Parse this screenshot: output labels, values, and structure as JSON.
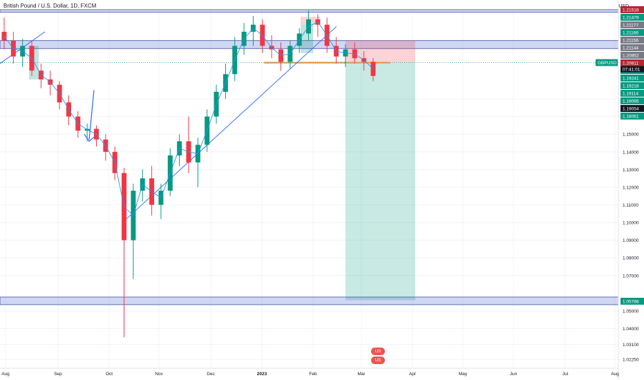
{
  "chart_title": "British Pound / U.S. Dollar, 1D, FXCM",
  "currency": "USD",
  "symbol": "GBPUSD",
  "countdown": "07:41:01",
  "flags": [
    "US",
    "US"
  ],
  "chart_data": {
    "type": "candlestick",
    "ylim": [
      1.0175,
      1.2205
    ],
    "price_ticks": [
      "1.17000",
      "1.16000",
      "1.15000",
      "1.14000",
      "1.13000",
      "1.12000",
      "1.11000",
      "1.10000",
      "1.09000",
      "1.08000",
      "1.07000",
      "1.05000",
      "1.04000",
      "1.03100",
      "1.02250"
    ],
    "price_tick_values": [
      1.17,
      1.16,
      1.15,
      1.14,
      1.13,
      1.12,
      1.11,
      1.1,
      1.09,
      1.08,
      1.07,
      1.05,
      1.04,
      1.031,
      1.0225
    ],
    "x_labels": [
      {
        "label": "Aug",
        "bold": false
      },
      {
        "label": "Sep",
        "bold": false
      },
      {
        "label": "Oct",
        "bold": false
      },
      {
        "label": "Nov",
        "bold": false
      },
      {
        "label": "Dec",
        "bold": false
      },
      {
        "label": "2023",
        "bold": true
      },
      {
        "label": "Feb",
        "bold": false
      },
      {
        "label": "Mar",
        "bold": false
      },
      {
        "label": "Apr",
        "bold": false
      },
      {
        "label": "May",
        "bold": false
      },
      {
        "label": "Jun",
        "bold": false
      },
      {
        "label": "Jul",
        "bold": false
      },
      {
        "label": "Aug",
        "bold": false
      }
    ],
    "price_tags": [
      {
        "text": "1.21518",
        "color": "#b22833"
      },
      {
        "text": "1.21479",
        "color": "#089981"
      },
      {
        "text": "1.21177",
        "color": "#787b86"
      },
      {
        "text": "1.21166",
        "color": "#089981"
      },
      {
        "text": "1.21156",
        "color": "#787b86"
      },
      {
        "text": "1.21144",
        "color": "#787b86"
      },
      {
        "text": "1.20852",
        "color": "#787b86"
      },
      {
        "text": "1.20811",
        "color": "#b22833"
      },
      {
        "text": "1.20277",
        "color": "#089981"
      },
      {
        "text": "1.19241",
        "color": "#089981"
      },
      {
        "text": "1.19218",
        "color": "#089981"
      },
      {
        "text": "1.19114",
        "color": "#089981"
      },
      {
        "text": "1.19095",
        "color": "#089981"
      },
      {
        "text": "1.19054",
        "color": "#131722"
      },
      {
        "text": "1.18061",
        "color": "#089981"
      },
      {
        "text": "1.05788",
        "color": "#089981"
      }
    ],
    "current_price": 1.19054,
    "zones": [
      {
        "from": 1.219,
        "to": 1.2205
      },
      {
        "from": 1.1985,
        "to": 1.203
      },
      {
        "from": 1.0535,
        "to": 1.0578
      }
    ],
    "position": {
      "entry": 1.1905,
      "stop": 1.203,
      "target": 1.056
    },
    "candles": [
      {
        "o": 1.208,
        "h": 1.216,
        "c": 1.203,
        "l": 1.198
      },
      {
        "o": 1.203,
        "h": 1.208,
        "c": 1.194,
        "l": 1.19
      },
      {
        "o": 1.194,
        "h": 1.204,
        "c": 1.2,
        "l": 1.188
      },
      {
        "o": 1.2,
        "h": 1.203,
        "c": 1.186,
        "l": 1.183
      },
      {
        "o": 1.186,
        "h": 1.19,
        "c": 1.181,
        "l": 1.176
      },
      {
        "o": 1.181,
        "h": 1.186,
        "c": 1.178,
        "l": 1.172
      },
      {
        "o": 1.178,
        "h": 1.18,
        "c": 1.168,
        "l": 1.164
      },
      {
        "o": 1.168,
        "h": 1.172,
        "c": 1.16,
        "l": 1.155
      },
      {
        "o": 1.16,
        "h": 1.163,
        "c": 1.152,
        "l": 1.148
      },
      {
        "o": 1.152,
        "h": 1.156,
        "c": 1.153,
        "l": 1.146
      },
      {
        "o": 1.153,
        "h": 1.155,
        "c": 1.147,
        "l": 1.143
      },
      {
        "o": 1.147,
        "h": 1.15,
        "c": 1.14,
        "l": 1.135
      },
      {
        "o": 1.14,
        "h": 1.143,
        "c": 1.128,
        "l": 1.124
      },
      {
        "o": 1.128,
        "h": 1.131,
        "c": 1.09,
        "l": 1.035
      },
      {
        "o": 1.09,
        "h": 1.122,
        "c": 1.118,
        "l": 1.068
      },
      {
        "o": 1.118,
        "h": 1.13,
        "c": 1.125,
        "l": 1.112
      },
      {
        "o": 1.125,
        "h": 1.132,
        "c": 1.11,
        "l": 1.104
      },
      {
        "o": 1.11,
        "h": 1.122,
        "c": 1.118,
        "l": 1.102
      },
      {
        "o": 1.118,
        "h": 1.142,
        "c": 1.138,
        "l": 1.115
      },
      {
        "o": 1.138,
        "h": 1.15,
        "c": 1.146,
        "l": 1.132
      },
      {
        "o": 1.146,
        "h": 1.16,
        "c": 1.134,
        "l": 1.128
      },
      {
        "o": 1.134,
        "h": 1.148,
        "c": 1.144,
        "l": 1.12
      },
      {
        "o": 1.144,
        "h": 1.164,
        "c": 1.16,
        "l": 1.14
      },
      {
        "o": 1.16,
        "h": 1.178,
        "c": 1.174,
        "l": 1.156
      },
      {
        "o": 1.174,
        "h": 1.19,
        "c": 1.184,
        "l": 1.17
      },
      {
        "o": 1.184,
        "h": 1.205,
        "c": 1.2,
        "l": 1.18
      },
      {
        "o": 1.2,
        "h": 1.213,
        "c": 1.208,
        "l": 1.195
      },
      {
        "o": 1.208,
        "h": 1.217,
        "c": 1.212,
        "l": 1.2
      },
      {
        "o": 1.212,
        "h": 1.215,
        "c": 1.2,
        "l": 1.196
      },
      {
        "o": 1.2,
        "h": 1.206,
        "c": 1.198,
        "l": 1.193
      },
      {
        "o": 1.198,
        "h": 1.202,
        "c": 1.191,
        "l": 1.186
      },
      {
        "o": 1.191,
        "h": 1.203,
        "c": 1.2,
        "l": 1.187
      },
      {
        "o": 1.2,
        "h": 1.21,
        "c": 1.207,
        "l": 1.196
      },
      {
        "o": 1.207,
        "h": 1.22,
        "c": 1.215,
        "l": 1.203
      },
      {
        "o": 1.215,
        "h": 1.218,
        "c": 1.212,
        "l": 1.205
      },
      {
        "o": 1.212,
        "h": 1.216,
        "c": 1.2,
        "l": 1.196
      },
      {
        "o": 1.2,
        "h": 1.205,
        "c": 1.194,
        "l": 1.19
      },
      {
        "o": 1.194,
        "h": 1.201,
        "c": 1.198,
        "l": 1.188
      },
      {
        "o": 1.198,
        "h": 1.202,
        "c": 1.193,
        "l": 1.19
      },
      {
        "o": 1.193,
        "h": 1.197,
        "c": 1.191,
        "l": 1.186
      },
      {
        "o": 1.191,
        "h": 1.193,
        "c": 1.183,
        "l": 1.18
      }
    ]
  }
}
